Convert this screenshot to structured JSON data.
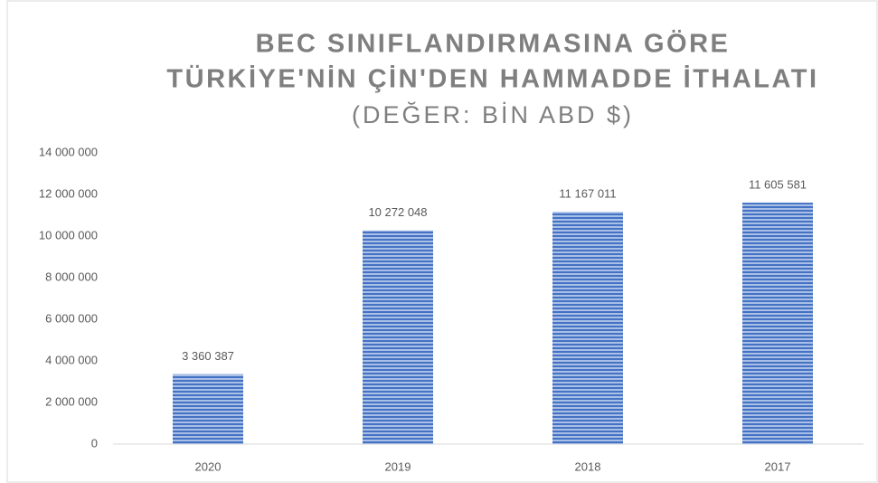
{
  "chart_data": {
    "type": "bar",
    "title": [
      "BEC SINIFLANDIRMASINA GÖRE",
      "TÜRKİYE'NİN ÇİN'DEN HAMMADDE İTHALATI"
    ],
    "subtitle": "(DEĞER: BİN ABD $)",
    "categories": [
      "2020",
      "2019",
      "2018",
      "2017"
    ],
    "values": [
      3360387,
      10272048,
      11167011,
      11605581
    ],
    "value_labels": [
      "3 360 387",
      "10 272 048",
      "11 167 011",
      "11 605 581"
    ],
    "color": "#4472c4",
    "ylim": [
      0,
      14000000
    ],
    "yticks": [
      0,
      {
        "value": 2000000,
        "label": "2 000 000"
      },
      {
        "value": 4000000,
        "label": "4 000 000"
      },
      {
        "value": 6000000,
        "label": "6 000 000"
      },
      {
        "value": 8000000,
        "label": "8 000 000"
      },
      {
        "value": 10000000,
        "label": "10 000 000"
      },
      {
        "value": 12000000,
        "label": "12 000 000"
      },
      {
        "value": 14000000,
        "label": "14 000 000"
      }
    ],
    "grid": false
  }
}
